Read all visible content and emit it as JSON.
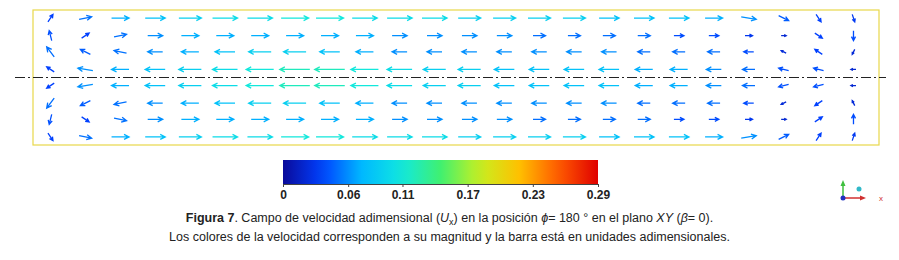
{
  "chart_data": {
    "type": "vector_field",
    "tick_labels": false,
    "grid": false,
    "xlim": [
      0,
      6.3
    ],
    "ylim": [
      -0.5,
      0.5
    ],
    "field": {
      "x": [
        0.13,
        0.39,
        0.65,
        0.91,
        1.17,
        1.43,
        1.69,
        1.95,
        2.21,
        2.47,
        2.73,
        2.99,
        3.25,
        3.51,
        3.77,
        4.03,
        4.29,
        4.55,
        4.81,
        5.07,
        5.33,
        5.59,
        5.85,
        6.11
      ],
      "y": [
        0.44,
        0.31,
        0.19,
        0.06,
        -0.06,
        -0.19,
        -0.31,
        -0.44
      ],
      "ux": [
        [
          0.02,
          0.05,
          0.07,
          0.08,
          0.09,
          0.1,
          0.1,
          0.11,
          0.11,
          0.1,
          0.1,
          0.1,
          0.09,
          0.09,
          0.09,
          0.09,
          0.08,
          0.08,
          0.08,
          0.07,
          0.06,
          0.04,
          0.02,
          0.01
        ],
        [
          -0.01,
          0.03,
          0.05,
          0.06,
          0.07,
          0.07,
          0.07,
          0.07,
          0.07,
          0.07,
          0.06,
          0.06,
          0.06,
          0.06,
          0.05,
          0.05,
          0.05,
          0.05,
          0.04,
          0.04,
          0.03,
          0.02,
          0.03,
          0
        ],
        [
          -0.03,
          -0.04,
          -0.05,
          -0.06,
          -0.07,
          -0.08,
          -0.09,
          -0.09,
          -0.08,
          -0.07,
          -0.06,
          -0.06,
          -0.06,
          -0.06,
          -0.06,
          -0.06,
          -0.06,
          -0.05,
          -0.05,
          -0.05,
          -0.04,
          -0.02,
          -0.03,
          -0.01
        ],
        [
          -0.03,
          -0.06,
          -0.07,
          -0.08,
          -0.09,
          -0.1,
          -0.11,
          -0.12,
          -0.12,
          -0.11,
          -0.1,
          -0.09,
          -0.09,
          -0.08,
          -0.08,
          -0.08,
          -0.08,
          -0.07,
          -0.07,
          -0.06,
          -0.05,
          -0.04,
          -0.04,
          -0.02
        ],
        [
          -0.03,
          -0.06,
          -0.07,
          -0.08,
          -0.09,
          -0.1,
          -0.11,
          -0.12,
          -0.12,
          -0.11,
          -0.1,
          -0.09,
          -0.09,
          -0.08,
          -0.08,
          -0.08,
          -0.08,
          -0.07,
          -0.07,
          -0.06,
          -0.05,
          -0.04,
          -0.04,
          -0.02
        ],
        [
          -0.03,
          -0.04,
          -0.05,
          -0.06,
          -0.07,
          -0.08,
          -0.09,
          -0.09,
          -0.08,
          -0.07,
          -0.06,
          -0.06,
          -0.06,
          -0.06,
          -0.06,
          -0.06,
          -0.06,
          -0.05,
          -0.05,
          -0.05,
          -0.04,
          -0.02,
          -0.03,
          -0.01
        ],
        [
          -0.01,
          0.03,
          0.05,
          0.06,
          0.07,
          0.07,
          0.07,
          0.07,
          0.07,
          0.07,
          0.06,
          0.06,
          0.06,
          0.06,
          0.05,
          0.05,
          0.05,
          0.05,
          0.04,
          0.04,
          0.03,
          0.02,
          0.03,
          0
        ],
        [
          0.02,
          0.05,
          0.07,
          0.08,
          0.09,
          0.1,
          0.1,
          0.11,
          0.11,
          0.1,
          0.1,
          0.1,
          0.09,
          0.09,
          0.09,
          0.09,
          0.08,
          0.08,
          0.08,
          0.07,
          0.06,
          0.04,
          0.02,
          0.01
        ]
      ],
      "uy": [
        [
          0.03,
          0.01,
          0,
          0,
          0,
          0,
          0,
          0,
          0,
          0,
          0,
          0,
          0,
          0,
          0,
          0,
          0,
          0,
          0,
          0,
          -0.01,
          -0.02,
          -0.03,
          -0.03
        ],
        [
          0.04,
          0.02,
          0.01,
          0,
          0,
          0,
          0,
          0,
          0,
          0,
          0,
          0,
          0,
          0,
          0,
          0,
          0,
          0,
          0,
          0,
          0,
          0,
          -0.02,
          -0.04
        ],
        [
          0.04,
          0.02,
          0.01,
          0,
          0,
          0,
          0,
          0,
          0,
          0,
          0,
          0,
          0,
          0,
          0,
          0,
          0,
          0,
          0,
          0,
          0,
          0.01,
          0.02,
          -0.02
        ],
        [
          0.02,
          0.01,
          0,
          0,
          0,
          0,
          0,
          0,
          0,
          0,
          0,
          0,
          0,
          0,
          0,
          0,
          0,
          0,
          0,
          0,
          0,
          0.01,
          0.01,
          0
        ],
        [
          -0.02,
          -0.01,
          0,
          0,
          0,
          0,
          0,
          0,
          0,
          0,
          0,
          0,
          0,
          0,
          0,
          0,
          0,
          0,
          0,
          0,
          0,
          -0.01,
          -0.01,
          0
        ],
        [
          -0.04,
          -0.02,
          -0.01,
          0,
          0,
          0,
          0,
          0,
          0,
          0,
          0,
          0,
          0,
          0,
          0,
          0,
          0,
          0,
          0,
          0,
          0,
          -0.01,
          -0.02,
          0.02
        ],
        [
          -0.04,
          -0.02,
          -0.01,
          0,
          0,
          0,
          0,
          0,
          0,
          0,
          0,
          0,
          0,
          0,
          0,
          0,
          0,
          0,
          0,
          0,
          0,
          0,
          0.02,
          0.04
        ],
        [
          -0.03,
          -0.01,
          0,
          0,
          0,
          0,
          0,
          0,
          0,
          0,
          0,
          0,
          0,
          0,
          0,
          0,
          0,
          0,
          0,
          0,
          0.01,
          0.02,
          0.03,
          0.03
        ]
      ]
    },
    "colorbar": {
      "range": [
        0,
        0.29
      ],
      "ticks": [
        0,
        0.06,
        0.11,
        0.17,
        0.23,
        0.29
      ]
    },
    "triad_label": "x",
    "caption": [
      [
        {
          "text": "Figura 7",
          "style": "bold"
        },
        {
          "text": ". Campo de velocidad adimensional (",
          "style": "normal"
        },
        {
          "text": "U",
          "style": "italic"
        },
        {
          "text": "x",
          "style": "sub"
        },
        {
          "text": ") en la posición ",
          "style": "normal"
        },
        {
          "text": "ϕ",
          "style": "italic"
        },
        {
          "text": "= 180 ° en el plano ",
          "style": "normal"
        },
        {
          "text": "XY",
          "style": "italic"
        },
        {
          "text": " (",
          "style": "normal"
        },
        {
          "text": "β",
          "style": "italic"
        },
        {
          "text": "= 0).",
          "style": "normal"
        }
      ],
      [
        {
          "text": "Los colores de la velocidad corresponden a su magnitud y la barra está en unidades adimensionales.",
          "style": "normal"
        }
      ]
    ]
  }
}
